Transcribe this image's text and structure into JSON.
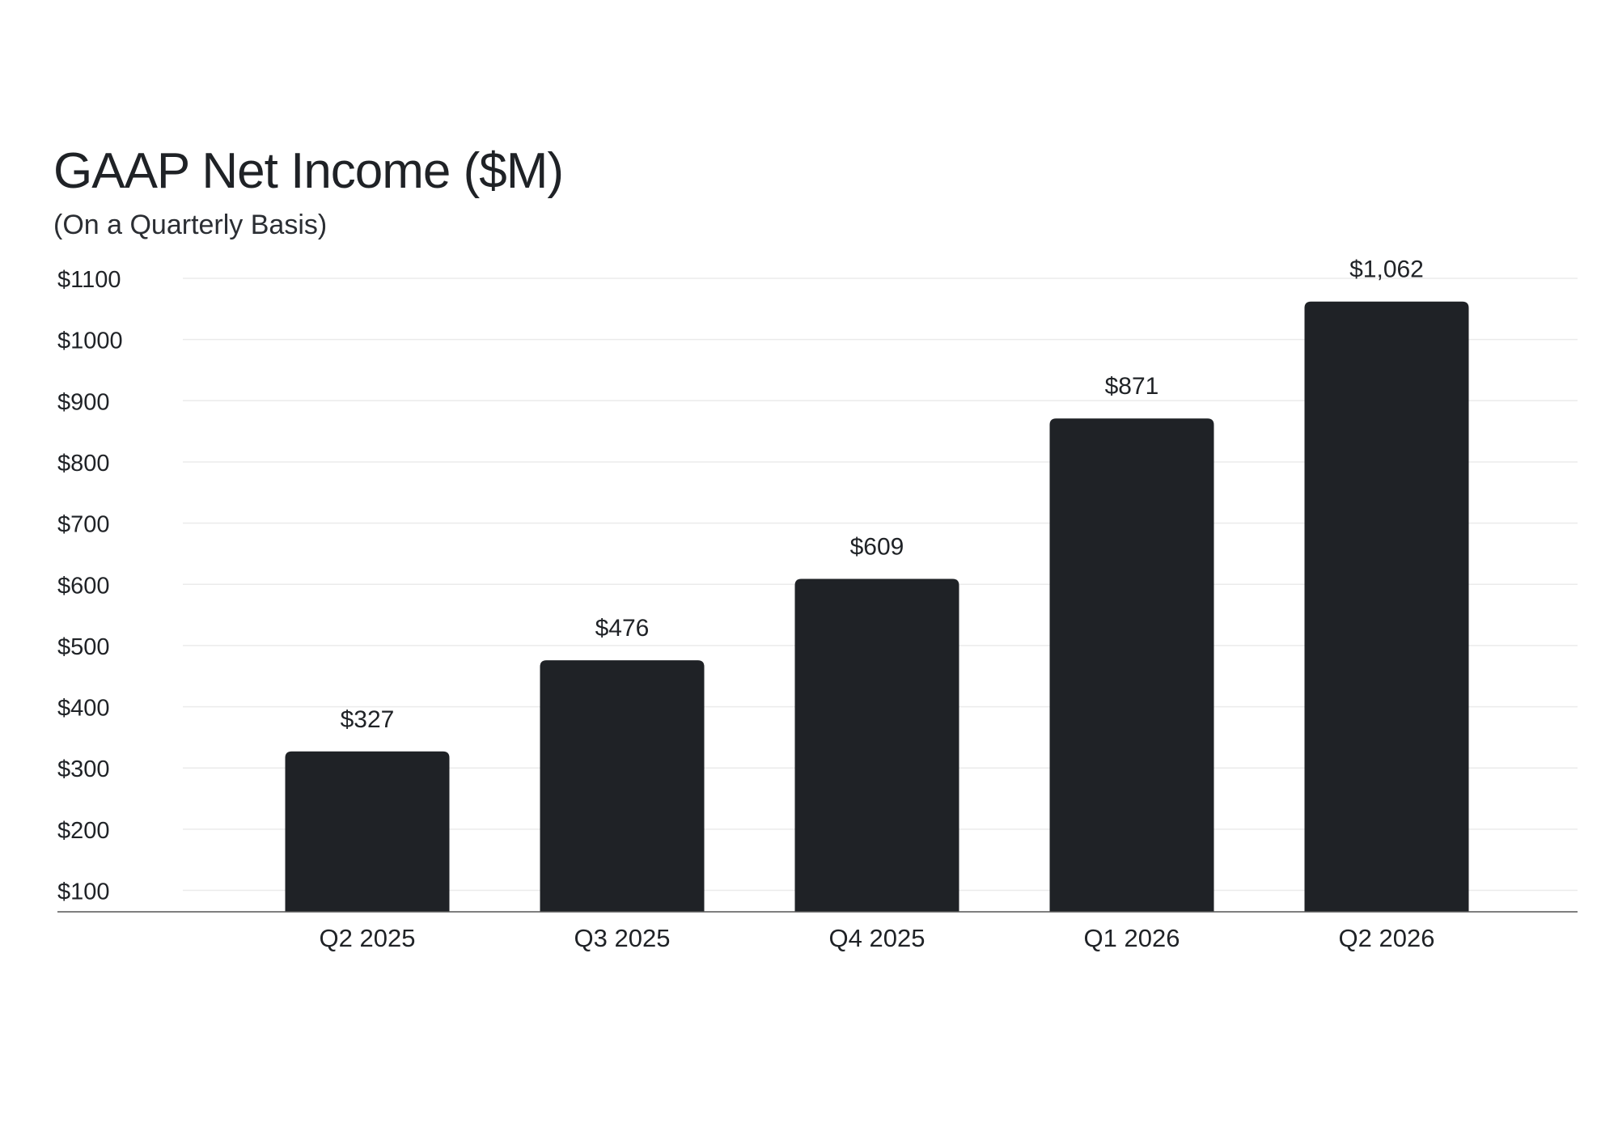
{
  "chart_data": {
    "type": "bar",
    "title": "GAAP Net Income ($M)",
    "subtitle": "(On a Quarterly Basis)",
    "xlabel": "",
    "ylabel": "",
    "categories": [
      "Q2 2025",
      "Q3 2025",
      "Q4 2025",
      "Q1 2026",
      "Q2 2026"
    ],
    "values": [
      327,
      476,
      609,
      871,
      1062
    ],
    "value_labels": [
      "$327",
      "$476",
      "$609",
      "$871",
      "$1,062"
    ],
    "ylim": [
      65,
      1100
    ],
    "y_ticks": [
      100,
      200,
      300,
      400,
      500,
      600,
      700,
      800,
      900,
      1000,
      1100
    ],
    "y_tick_labels": [
      "$100",
      "$200",
      "$300",
      "$400",
      "$500",
      "$600",
      "$700",
      "$800",
      "$900",
      "$1000",
      "$1100"
    ],
    "grid": true,
    "legend": "none",
    "colors": {
      "bar": "#1f2226",
      "grid": "#ebebeb",
      "axis": "#555555",
      "text": "#1f2226",
      "background": "#ffffff"
    }
  }
}
